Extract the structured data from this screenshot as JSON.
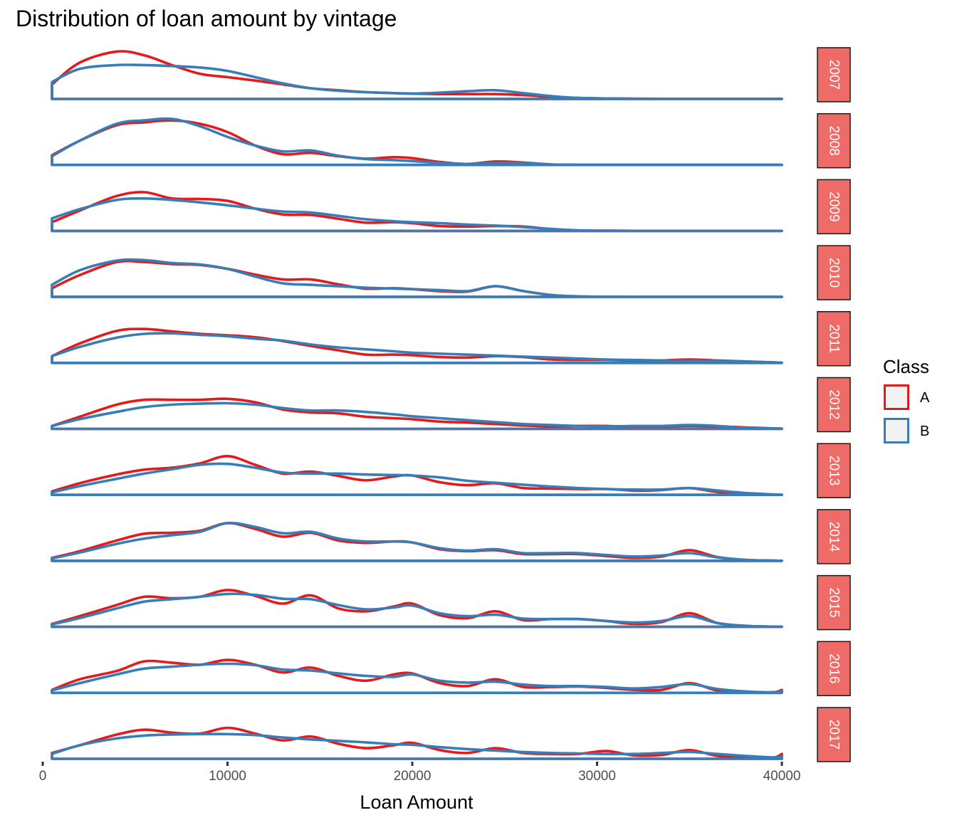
{
  "title": "Distribution of loan amount by vintage",
  "chart_data": {
    "type": "area",
    "xlabel": "Loan Amount",
    "ylabel": "",
    "xlim": [
      0,
      40000
    ],
    "x_ticks": [
      "0",
      "10000",
      "20000",
      "30000",
      "40000"
    ],
    "x": [
      500,
      2000,
      4000,
      5500,
      7000,
      8500,
      10000,
      11500,
      13000,
      14500,
      16000,
      17500,
      19000,
      20000,
      21500,
      23000,
      24500,
      26000,
      27500,
      29000,
      30500,
      32000,
      33500,
      35000,
      36500,
      38000,
      39500,
      40000
    ],
    "series_order": [
      "A",
      "B"
    ],
    "colors": {
      "A": "#e41a1c",
      "B": "#377eb8"
    },
    "legend": {
      "title": "Class",
      "entries": [
        "A",
        "B"
      ],
      "position": "right"
    },
    "grid": false,
    "facets": [
      {
        "strip": "2007",
        "A": [
          0.3,
          0.75,
          0.98,
          0.9,
          0.7,
          0.52,
          0.45,
          0.38,
          0.3,
          0.22,
          0.18,
          0.14,
          0.12,
          0.11,
          0.1,
          0.1,
          0.1,
          0.08,
          0.04,
          0.02,
          0.01,
          0.005,
          0.003,
          0.002,
          0.001,
          0.001,
          0.001,
          0.001
        ],
        "B": [
          0.35,
          0.62,
          0.7,
          0.7,
          0.68,
          0.65,
          0.58,
          0.45,
          0.32,
          0.22,
          0.17,
          0.14,
          0.12,
          0.11,
          0.13,
          0.16,
          0.18,
          0.12,
          0.06,
          0.02,
          0.01,
          0.005,
          0.003,
          0.002,
          0.001,
          0.001,
          0.001,
          0.001
        ]
      },
      {
        "strip": "2008",
        "A": [
          0.2,
          0.5,
          0.82,
          0.88,
          0.92,
          0.85,
          0.68,
          0.4,
          0.22,
          0.25,
          0.18,
          0.13,
          0.16,
          0.14,
          0.06,
          0.02,
          0.07,
          0.05,
          0.01,
          0.003,
          0.002,
          0.001,
          0.001,
          0.001,
          0.001,
          0.001,
          0.001,
          0.001
        ],
        "B": [
          0.18,
          0.5,
          0.85,
          0.92,
          0.95,
          0.8,
          0.58,
          0.4,
          0.28,
          0.3,
          0.19,
          0.12,
          0.1,
          0.08,
          0.04,
          0.02,
          0.04,
          0.04,
          0.01,
          0.003,
          0.002,
          0.001,
          0.001,
          0.001,
          0.001,
          0.001,
          0.001,
          0.001
        ]
      },
      {
        "strip": "2009",
        "A": [
          0.18,
          0.42,
          0.72,
          0.8,
          0.67,
          0.66,
          0.62,
          0.46,
          0.34,
          0.33,
          0.25,
          0.17,
          0.18,
          0.16,
          0.1,
          0.09,
          0.1,
          0.09,
          0.04,
          0.01,
          0.005,
          0.002,
          0.001,
          0.001,
          0.001,
          0.001,
          0.001,
          0.001
        ],
        "B": [
          0.26,
          0.45,
          0.64,
          0.67,
          0.64,
          0.59,
          0.53,
          0.46,
          0.4,
          0.38,
          0.31,
          0.24,
          0.2,
          0.18,
          0.16,
          0.13,
          0.11,
          0.08,
          0.04,
          0.01,
          0.005,
          0.002,
          0.001,
          0.001,
          0.001,
          0.001,
          0.001,
          0.001
        ],
        "_note": ""
      },
      {
        "strip": "2010",
        "A": [
          0.18,
          0.45,
          0.72,
          0.72,
          0.68,
          0.66,
          0.58,
          0.46,
          0.36,
          0.36,
          0.26,
          0.17,
          0.18,
          0.16,
          0.12,
          0.11,
          0.22,
          0.12,
          0.04,
          0.01,
          0.005,
          0.002,
          0.001,
          0.001,
          0.001,
          0.001,
          0.001,
          0.001
        ],
        "B": [
          0.25,
          0.55,
          0.75,
          0.76,
          0.7,
          0.67,
          0.58,
          0.42,
          0.28,
          0.25,
          0.22,
          0.19,
          0.17,
          0.16,
          0.14,
          0.12,
          0.22,
          0.12,
          0.04,
          0.01,
          0.005,
          0.002,
          0.001,
          0.001,
          0.001,
          0.001,
          0.001,
          0.001
        ]
      },
      {
        "strip": "2011",
        "A": [
          0.14,
          0.4,
          0.66,
          0.7,
          0.65,
          0.6,
          0.57,
          0.53,
          0.45,
          0.35,
          0.26,
          0.17,
          0.17,
          0.16,
          0.12,
          0.11,
          0.14,
          0.12,
          0.07,
          0.06,
          0.06,
          0.05,
          0.05,
          0.07,
          0.05,
          0.03,
          0.01,
          0.005
        ],
        "B": [
          0.14,
          0.33,
          0.52,
          0.6,
          0.61,
          0.58,
          0.55,
          0.5,
          0.46,
          0.38,
          0.32,
          0.28,
          0.24,
          0.21,
          0.19,
          0.17,
          0.15,
          0.13,
          0.11,
          0.09,
          0.07,
          0.06,
          0.05,
          0.04,
          0.04,
          0.03,
          0.01,
          0.005
        ]
      },
      {
        "strip": "2012",
        "A": [
          0.06,
          0.25,
          0.5,
          0.6,
          0.6,
          0.6,
          0.62,
          0.55,
          0.4,
          0.34,
          0.32,
          0.25,
          0.22,
          0.2,
          0.15,
          0.13,
          0.1,
          0.07,
          0.05,
          0.06,
          0.06,
          0.04,
          0.05,
          0.06,
          0.05,
          0.03,
          0.01,
          0.005
        ],
        "B": [
          0.06,
          0.2,
          0.35,
          0.45,
          0.5,
          0.52,
          0.53,
          0.5,
          0.43,
          0.38,
          0.38,
          0.35,
          0.3,
          0.26,
          0.22,
          0.18,
          0.14,
          0.1,
          0.08,
          0.06,
          0.05,
          0.06,
          0.06,
          0.08,
          0.06,
          0.02,
          0.01,
          0.005
        ]
      },
      {
        "strip": "2013",
        "A": [
          0.07,
          0.24,
          0.42,
          0.52,
          0.56,
          0.65,
          0.8,
          0.62,
          0.44,
          0.48,
          0.39,
          0.3,
          0.38,
          0.4,
          0.26,
          0.2,
          0.24,
          0.14,
          0.13,
          0.12,
          0.12,
          0.09,
          0.1,
          0.14,
          0.06,
          0.02,
          0.005,
          0.002
        ],
        "B": [
          0.05,
          0.18,
          0.33,
          0.44,
          0.53,
          0.62,
          0.64,
          0.56,
          0.46,
          0.44,
          0.44,
          0.42,
          0.41,
          0.4,
          0.36,
          0.29,
          0.25,
          0.21,
          0.17,
          0.14,
          0.12,
          0.11,
          0.11,
          0.14,
          0.09,
          0.04,
          0.01,
          0.005
        ]
      },
      {
        "strip": "2014",
        "A": [
          0.06,
          0.2,
          0.42,
          0.56,
          0.58,
          0.62,
          0.78,
          0.66,
          0.5,
          0.58,
          0.42,
          0.37,
          0.4,
          0.38,
          0.24,
          0.2,
          0.22,
          0.14,
          0.14,
          0.14,
          0.1,
          0.06,
          0.09,
          0.22,
          0.08,
          0.02,
          0.004,
          0.002
        ],
        "B": [
          0.05,
          0.17,
          0.35,
          0.46,
          0.53,
          0.6,
          0.78,
          0.7,
          0.57,
          0.6,
          0.46,
          0.4,
          0.4,
          0.38,
          0.26,
          0.21,
          0.24,
          0.16,
          0.16,
          0.16,
          0.12,
          0.09,
          0.11,
          0.16,
          0.07,
          0.02,
          0.004,
          0.002
        ]
      },
      {
        "strip": "2015",
        "A": [
          0.06,
          0.22,
          0.45,
          0.62,
          0.59,
          0.62,
          0.76,
          0.64,
          0.48,
          0.65,
          0.38,
          0.32,
          0.42,
          0.48,
          0.24,
          0.18,
          0.32,
          0.14,
          0.16,
          0.16,
          0.12,
          0.06,
          0.1,
          0.28,
          0.08,
          0.02,
          0.004,
          0.002
        ],
        "B": [
          0.05,
          0.18,
          0.38,
          0.52,
          0.57,
          0.62,
          0.68,
          0.66,
          0.58,
          0.57,
          0.45,
          0.36,
          0.4,
          0.44,
          0.28,
          0.22,
          0.25,
          0.17,
          0.16,
          0.16,
          0.12,
          0.09,
          0.12,
          0.22,
          0.08,
          0.02,
          0.004,
          0.002
        ]
      },
      {
        "strip": "2016",
        "A": [
          0.06,
          0.28,
          0.45,
          0.65,
          0.62,
          0.58,
          0.68,
          0.58,
          0.42,
          0.52,
          0.35,
          0.25,
          0.38,
          0.4,
          0.2,
          0.14,
          0.28,
          0.12,
          0.12,
          0.13,
          0.1,
          0.06,
          0.06,
          0.2,
          0.05,
          0.02,
          0.01,
          0.06
        ],
        "B": [
          0.05,
          0.2,
          0.38,
          0.5,
          0.54,
          0.58,
          0.6,
          0.57,
          0.48,
          0.46,
          0.4,
          0.35,
          0.33,
          0.38,
          0.25,
          0.21,
          0.23,
          0.17,
          0.14,
          0.14,
          0.12,
          0.09,
          0.12,
          0.18,
          0.08,
          0.03,
          0.01,
          0.03
        ]
      },
      {
        "strip": "2017",
        "A": [
          0.12,
          0.28,
          0.5,
          0.6,
          0.54,
          0.52,
          0.64,
          0.52,
          0.38,
          0.46,
          0.31,
          0.22,
          0.28,
          0.33,
          0.18,
          0.12,
          0.22,
          0.12,
          0.1,
          0.1,
          0.16,
          0.07,
          0.08,
          0.18,
          0.06,
          0.03,
          0.02,
          0.1
        ],
        "B": [
          0.1,
          0.28,
          0.42,
          0.48,
          0.5,
          0.51,
          0.51,
          0.49,
          0.44,
          0.4,
          0.37,
          0.34,
          0.3,
          0.29,
          0.24,
          0.2,
          0.17,
          0.14,
          0.12,
          0.11,
          0.1,
          0.1,
          0.12,
          0.14,
          0.1,
          0.06,
          0.03,
          0.04
        ]
      }
    ]
  }
}
